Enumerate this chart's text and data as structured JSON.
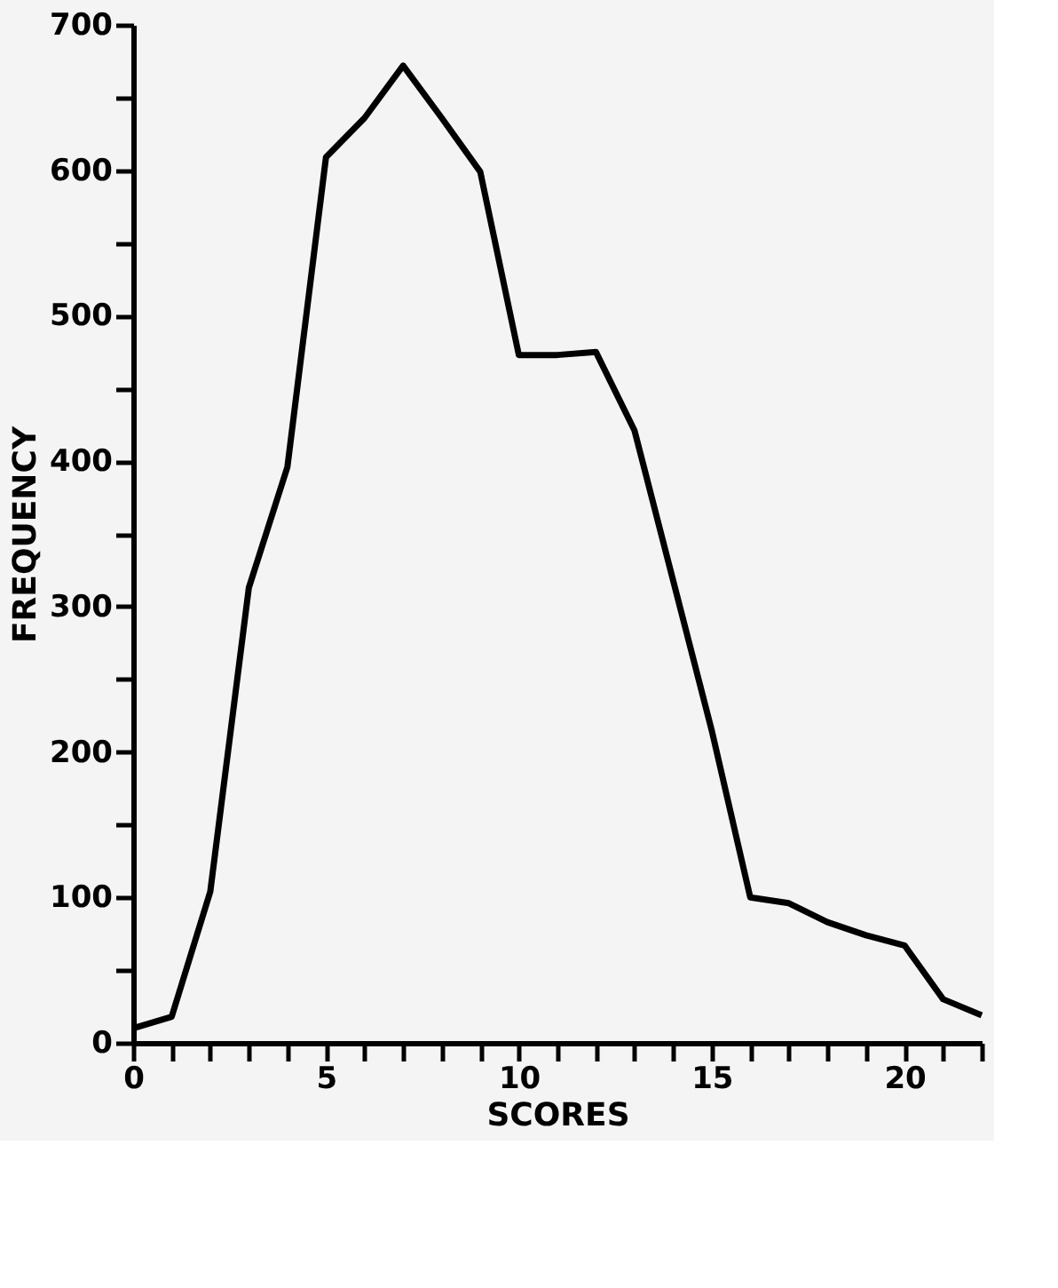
{
  "chart_data": {
    "type": "line",
    "xlabel": "SCORES",
    "ylabel": "FREQUENCY",
    "x": [
      0,
      1,
      2,
      3,
      4,
      5,
      6,
      7,
      8,
      9,
      10,
      11,
      12,
      13,
      14,
      15,
      16,
      17,
      18,
      19,
      20,
      21,
      22
    ],
    "series": [
      {
        "color": "#000000",
        "values": [
          10,
          18,
          104,
          313,
          396,
          609,
          636,
          672,
          636,
          599,
          473,
          473,
          475,
          421,
          318,
          215,
          100,
          96,
          83,
          74,
          67,
          30,
          19
        ]
      }
    ],
    "xlim": [
      0,
      22
    ],
    "xticks": [
      0,
      {
        "value": 1,
        "label": null
      },
      {
        "value": 2,
        "label": null
      },
      {
        "value": 3,
        "label": null
      },
      {
        "value": 4,
        "label": null
      },
      5,
      {
        "value": 6,
        "label": null
      },
      {
        "value": 7,
        "label": null
      },
      {
        "value": 8,
        "label": null
      },
      {
        "value": 9,
        "label": null
      },
      10,
      {
        "value": 11,
        "label": null
      },
      {
        "value": 12,
        "label": null
      },
      {
        "value": 13,
        "label": null
      },
      {
        "value": 14,
        "label": null
      },
      15,
      {
        "value": 16,
        "label": null
      },
      {
        "value": 17,
        "label": null
      },
      {
        "value": 18,
        "label": null
      },
      {
        "value": 19,
        "label": null
      },
      20,
      {
        "value": 21,
        "label": null
      },
      {
        "value": 22,
        "label": null
      }
    ],
    "ylim": [
      0,
      700
    ],
    "yticks": [
      0,
      {
        "value": 50,
        "label": null
      },
      100,
      {
        "value": 150,
        "label": null
      },
      200,
      {
        "value": 250,
        "label": null
      },
      300,
      {
        "value": 350,
        "label": null
      },
      400,
      {
        "value": 450,
        "label": null
      },
      500,
      {
        "value": 550,
        "label": null
      },
      600,
      {
        "value": 650,
        "label": null
      },
      700
    ],
    "grid": false,
    "marker": "none",
    "line_style": "solid",
    "legend": false
  }
}
